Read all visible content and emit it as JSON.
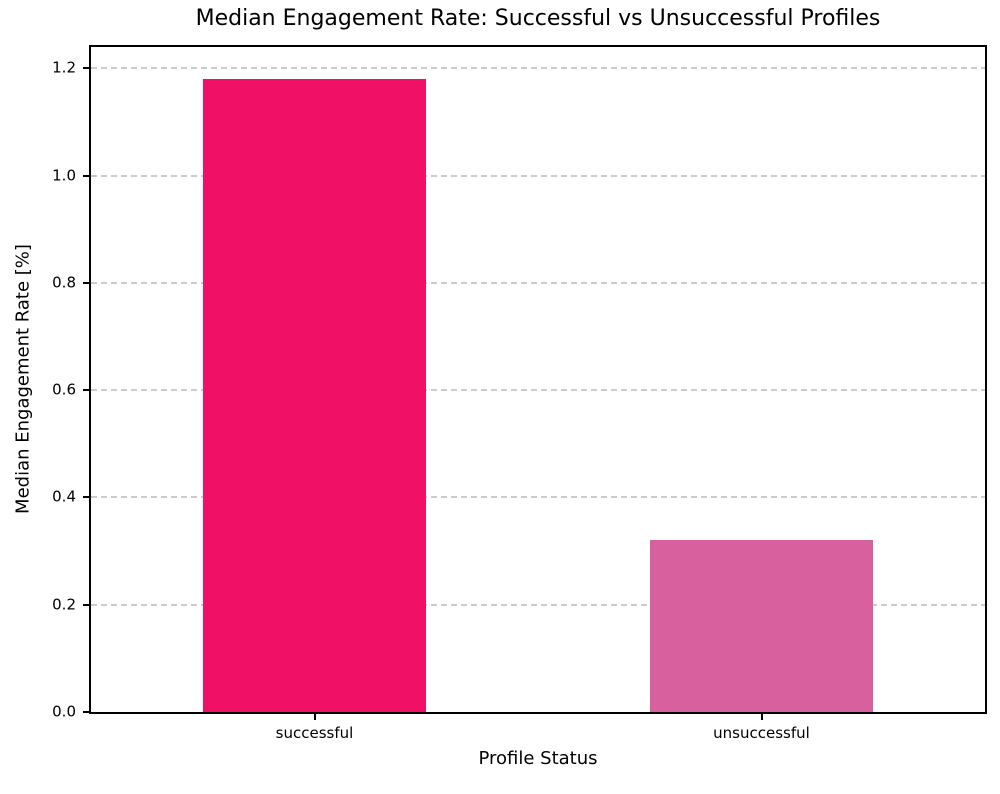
{
  "chart_data": {
    "type": "bar",
    "title": "Median Engagement Rate: Successful vs Unsuccessful Profiles",
    "categories": [
      "successful",
      "unsuccessful"
    ],
    "values": [
      1.18,
      0.32
    ],
    "bar_colors": [
      "#F01166",
      "#D9609E"
    ],
    "xlabel": "Profile Status",
    "ylabel": "Median Engagement Rate [%]",
    "ylim": [
      0,
      1.24
    ],
    "yticks": [
      0.0,
      0.2,
      0.4,
      0.6,
      0.8,
      1.0,
      1.2
    ],
    "ytick_decimals": 1,
    "bar_width_frac": 0.5,
    "grid": {
      "axis": "y",
      "style": "dashed",
      "color": "#cccccc"
    },
    "legend_position": "none",
    "background_color": "#ffffff",
    "spine_color": "#000000"
  }
}
